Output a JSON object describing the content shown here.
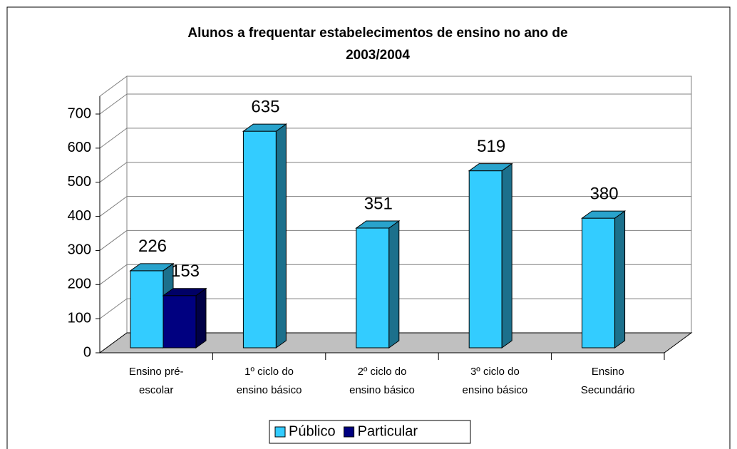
{
  "chart_data": {
    "type": "bar3d",
    "title": [
      "Alunos  a frequentar estabelecimentos de ensino no ano de",
      "2003/2004"
    ],
    "categories": [
      [
        "Ensino pré-",
        "escolar"
      ],
      [
        "1º ciclo do",
        "ensino básico"
      ],
      [
        "2º ciclo do",
        "ensino básico"
      ],
      [
        "3º ciclo do",
        "ensino básico"
      ],
      [
        "Ensino",
        "Secundário"
      ]
    ],
    "series": [
      {
        "name": "Público",
        "color": "#33ccff",
        "values": [
          226,
          635,
          351,
          519,
          380
        ]
      },
      {
        "name": "Particular",
        "color": "#000080",
        "values": [
          153,
          null,
          null,
          null,
          null
        ]
      }
    ],
    "ylim": [
      0,
      700
    ],
    "yticks": [
      0,
      100,
      200,
      300,
      400,
      500,
      600,
      700
    ],
    "grid": true,
    "legend": "bottom",
    "data_labels": true
  }
}
